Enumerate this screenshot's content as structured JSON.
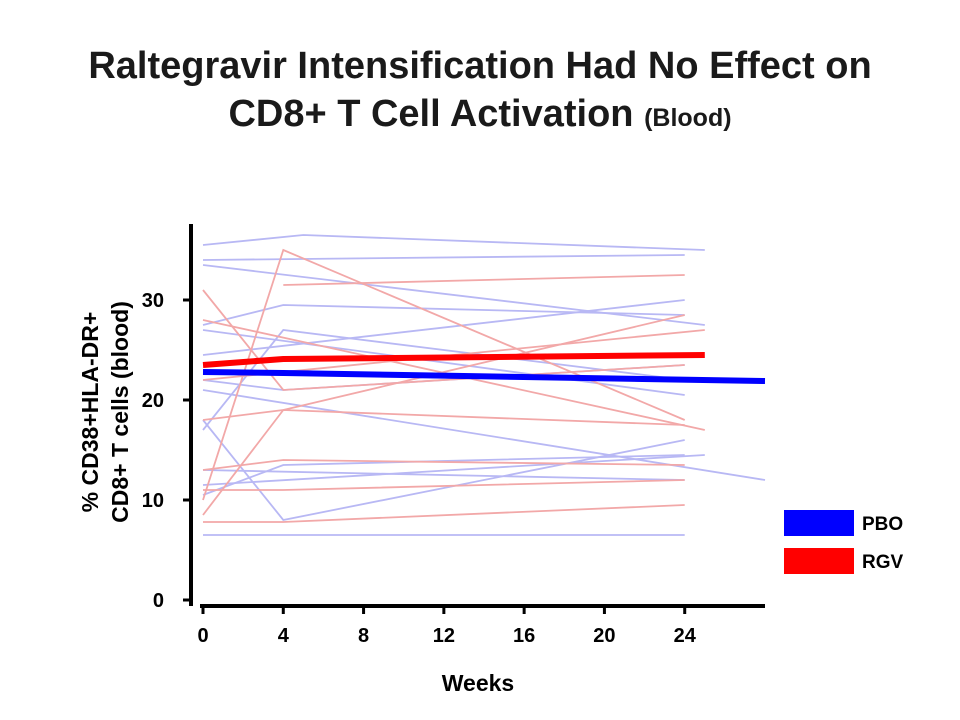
{
  "title": {
    "main_line1": "Raltegravir Intensification Had No Effect on",
    "main_line2": "CD8+ T Cell Activation",
    "suffix": "(Blood)"
  },
  "colors": {
    "pbo": "#0000ff",
    "rgv": "#ff0000",
    "pbo_light": "#b8b8f4",
    "rgv_light": "#f2a8a8"
  },
  "chart_data": {
    "type": "line",
    "xlabel": "Weeks",
    "ylabel_line1": "% CD38+HLA-DR+",
    "ylabel_line2": "CD8+ T cells (blood)",
    "x_ticks": [
      "0",
      "4",
      "8",
      "12",
      "16",
      "20",
      "24"
    ],
    "y_ticks": [
      "0",
      "10",
      "20",
      "30"
    ],
    "xlim": [
      0,
      28
    ],
    "ylim": [
      0,
      37
    ],
    "grid": false,
    "legend": {
      "placement": "bottom-right",
      "entries": [
        {
          "label": "PBO",
          "color": "#0000ff"
        },
        {
          "label": "RGV",
          "color": "#ff0000"
        }
      ]
    },
    "series": [
      {
        "name": "PBO",
        "group": "PBO",
        "mean": true,
        "x": [
          0,
          4,
          28
        ],
        "y": [
          22.8,
          22.7,
          21.9
        ]
      },
      {
        "name": "RGV",
        "group": "RGV",
        "mean": true,
        "x": [
          0,
          4,
          25
        ],
        "y": [
          23.5,
          24.1,
          24.5
        ]
      },
      {
        "group": "PBO",
        "x": [
          0,
          5,
          25
        ],
        "y": [
          35.5,
          36.5,
          35.0
        ]
      },
      {
        "group": "PBO",
        "x": [
          0,
          24
        ],
        "y": [
          34.0,
          34.5
        ]
      },
      {
        "group": "PBO",
        "x": [
          0,
          25
        ],
        "y": [
          33.5,
          27.5
        ]
      },
      {
        "group": "PBO",
        "x": [
          0,
          4,
          24
        ],
        "y": [
          27.5,
          29.5,
          28.5
        ]
      },
      {
        "group": "PBO",
        "x": [
          0,
          24
        ],
        "y": [
          27.0,
          20.5
        ]
      },
      {
        "group": "PBO",
        "x": [
          0,
          4,
          24
        ],
        "y": [
          17.0,
          27.0,
          22.0
        ]
      },
      {
        "group": "PBO",
        "x": [
          0,
          4,
          24
        ],
        "y": [
          22.0,
          21.0,
          23.5
        ]
      },
      {
        "group": "PBO",
        "x": [
          0,
          28
        ],
        "y": [
          21.0,
          12.0
        ]
      },
      {
        "group": "PBO",
        "x": [
          0,
          4,
          24
        ],
        "y": [
          18.0,
          8.0,
          16.0
        ]
      },
      {
        "group": "PBO",
        "x": [
          0,
          25
        ],
        "y": [
          11.5,
          14.5
        ]
      },
      {
        "group": "PBO",
        "x": [
          0,
          24
        ],
        "y": [
          13.0,
          12.0
        ]
      },
      {
        "group": "PBO",
        "x": [
          0,
          4,
          24
        ],
        "y": [
          10.5,
          13.5,
          14.5
        ]
      },
      {
        "group": "PBO",
        "x": [
          0,
          24
        ],
        "y": [
          6.5,
          6.5
        ]
      },
      {
        "group": "PBO",
        "x": [
          0,
          24
        ],
        "y": [
          24.5,
          30.0
        ]
      },
      {
        "group": "RGV",
        "x": [
          0,
          4,
          24
        ],
        "y": [
          31.0,
          21.0,
          23.5
        ]
      },
      {
        "group": "RGV",
        "x": [
          0,
          4,
          24
        ],
        "y": [
          10.0,
          35.0,
          18.0
        ]
      },
      {
        "group": "RGV",
        "x": [
          4,
          24
        ],
        "y": [
          31.5,
          32.5
        ]
      },
      {
        "group": "RGV",
        "x": [
          0,
          25
        ],
        "y": [
          28.0,
          17.0
        ]
      },
      {
        "group": "RGV",
        "x": [
          0,
          4,
          24
        ],
        "y": [
          18.0,
          19.0,
          28.5
        ]
      },
      {
        "group": "RGV",
        "x": [
          0,
          25
        ],
        "y": [
          22.0,
          27.0
        ]
      },
      {
        "group": "RGV",
        "x": [
          0,
          4,
          24
        ],
        "y": [
          8.5,
          19.0,
          17.5
        ]
      },
      {
        "group": "RGV",
        "x": [
          0,
          4,
          24
        ],
        "y": [
          13.0,
          14.0,
          13.5
        ]
      },
      {
        "group": "RGV",
        "x": [
          0,
          4,
          24
        ],
        "y": [
          11.0,
          11.0,
          12.0
        ]
      },
      {
        "group": "RGV",
        "x": [
          0,
          4,
          24
        ],
        "y": [
          7.8,
          7.8,
          9.5
        ]
      }
    ]
  }
}
